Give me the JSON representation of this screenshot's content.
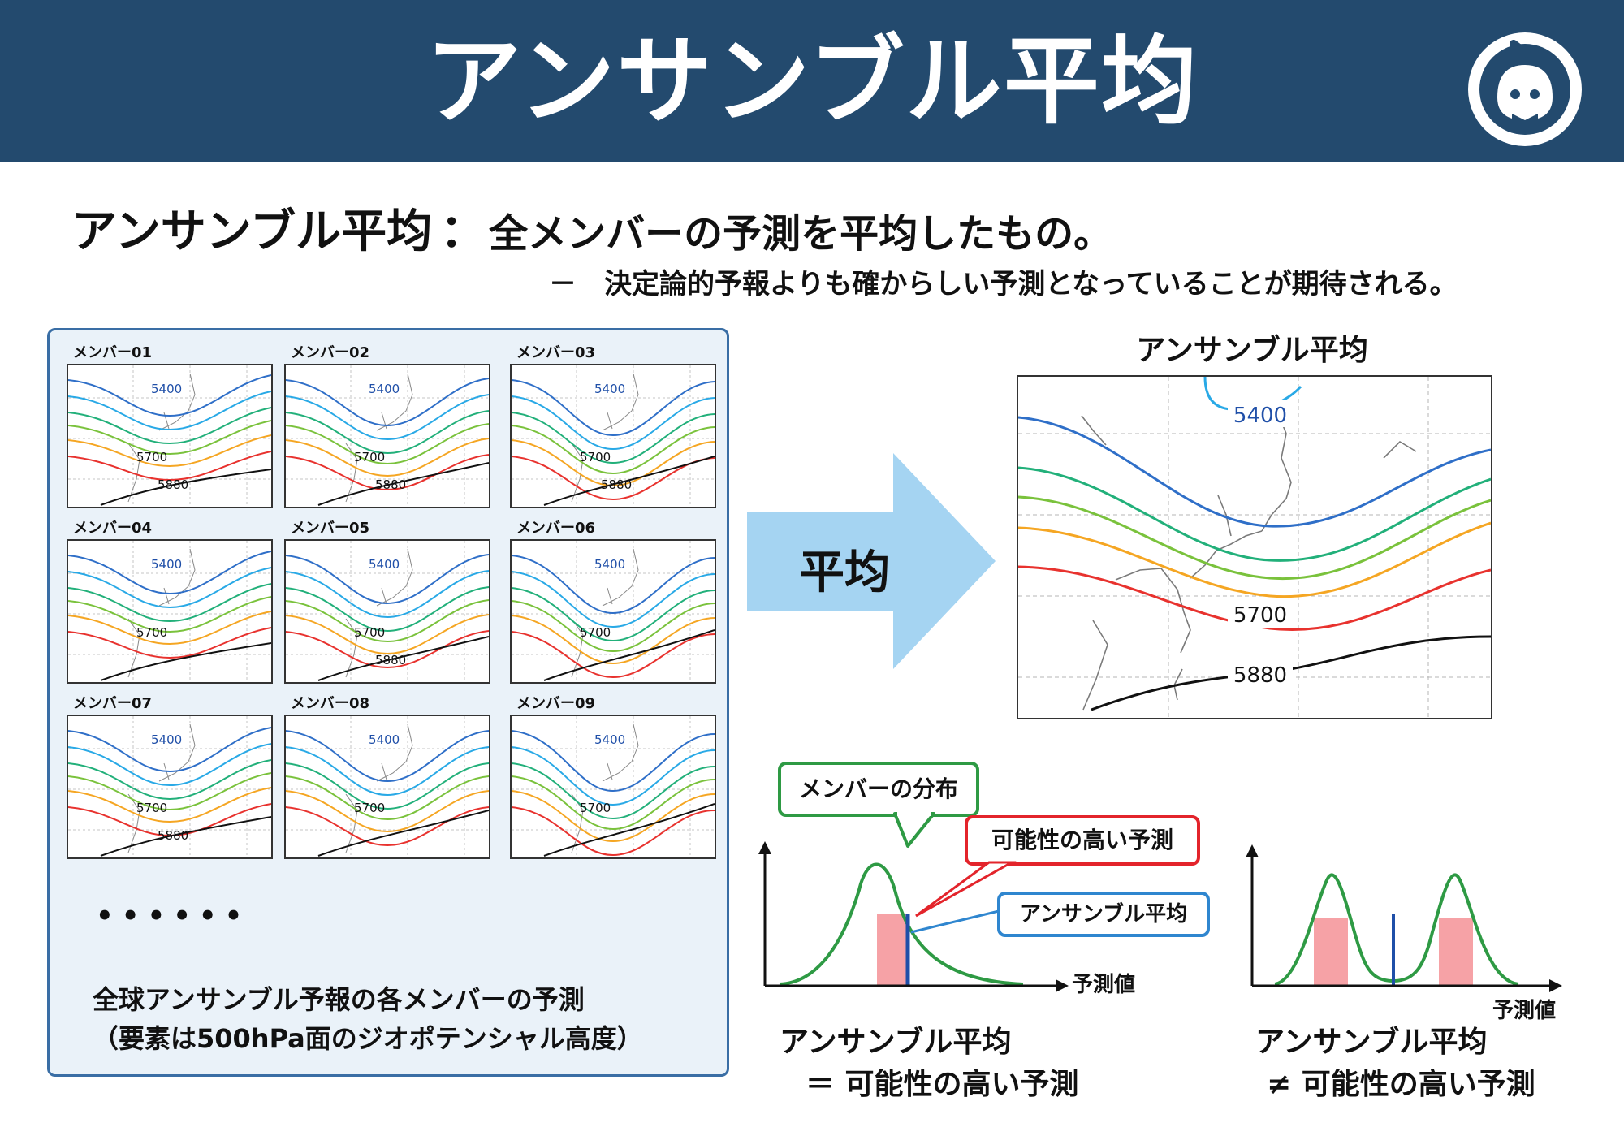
{
  "header": {
    "title": "アンサンブル平均"
  },
  "definition": {
    "term": "アンサンブル平均",
    "separator": "：",
    "text": "全メンバーの予測を平均したもの。",
    "sub_dash": "－",
    "sub_text": "決定論的予報よりも確からしい予測となっていることが期待される。"
  },
  "members": [
    {
      "label": "メンバー01",
      "c5400": "5400",
      "c5700": "5700",
      "c5880": "5880"
    },
    {
      "label": "メンバー02",
      "c5400": "5400",
      "c5700": "5700",
      "c5880": "5880"
    },
    {
      "label": "メンバー03",
      "c5400": "5400",
      "c5700": "5700",
      "c5880": "5880"
    },
    {
      "label": "メンバー04",
      "c5400": "5400",
      "c5700": "5700",
      "c5880": ""
    },
    {
      "label": "メンバー05",
      "c5400": "5400",
      "c5700": "5700",
      "c5880": "5880"
    },
    {
      "label": "メンバー06",
      "c5400": "5400",
      "c5700": "5700",
      "c5880": ""
    },
    {
      "label": "メンバー07",
      "c5400": "5400",
      "c5700": "5700",
      "c5880": "5880"
    },
    {
      "label": "メンバー08",
      "c5400": "5400",
      "c5700": "5700",
      "c5880": ""
    },
    {
      "label": "メンバー09",
      "c5400": "5400",
      "c5700": "5700",
      "c5880": ""
    }
  ],
  "left_panel": {
    "dots": "••••••",
    "note_line1": "全球アンサンブル予報の各メンバーの予測",
    "note_line2": "（要素は500hPa面のジオポテンシャル高度）"
  },
  "arrow": {
    "label": "平均"
  },
  "ensemble_mean_map": {
    "title": "アンサンブル平均",
    "c5400": "5400",
    "c5700": "5700",
    "c5880": "5880"
  },
  "distribution": {
    "callout_members": "メンバーの分布",
    "callout_likely": "可能性の高い予測",
    "callout_mean": "アンサンブル平均",
    "xlabel": "予測値",
    "left_conclusion_line1": "アンサンブル平均",
    "left_conclusion_line2": "＝ 可能性の高い予測",
    "right_conclusion_line1": "アンサンブル平均",
    "right_conclusion_line2": "≠ 可能性の高い予測"
  },
  "colors": {
    "header_bg": "#234a6e",
    "panel_border": "#3a6ea5",
    "contours": [
      "#2f6fc8",
      "#29a9e6",
      "#22b07a",
      "#7ac23c",
      "#f5a623",
      "#e8322e",
      "#111111"
    ],
    "curve": "#2e9a44",
    "likely_band": "#f6a2a6",
    "mean_line": "#1f4fa8"
  },
  "icons": {
    "logo": "weather-mascot-logo-icon"
  }
}
